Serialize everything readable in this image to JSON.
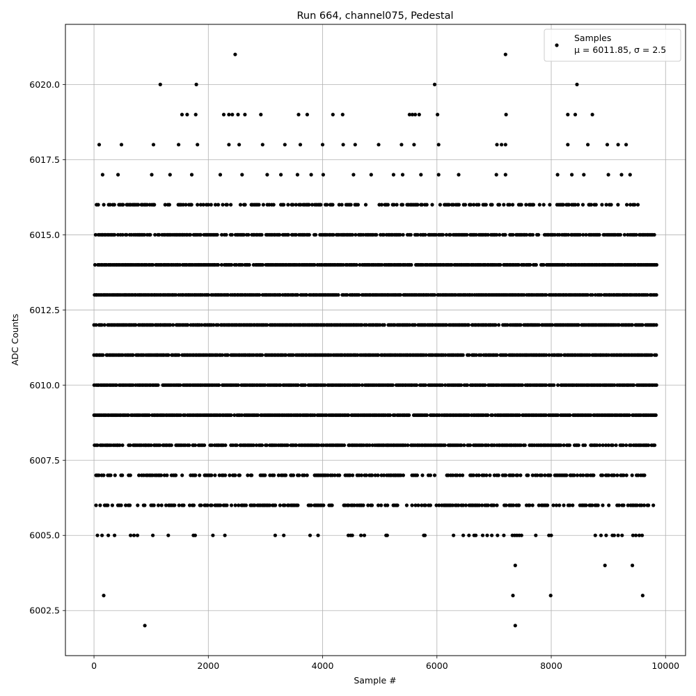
{
  "chart_data": {
    "type": "scatter",
    "title": "Run 664, channel075, Pedestal",
    "xlabel": "Sample #",
    "ylabel": "ADC Counts",
    "xlim": [
      -500,
      10350
    ],
    "ylim": [
      6001.0,
      6022.0
    ],
    "xticks": [
      0,
      2000,
      4000,
      6000,
      8000,
      10000
    ],
    "xtick_labels": [
      "0",
      "2000",
      "4000",
      "6000",
      "8000",
      "10000"
    ],
    "yticks": [
      6002.5,
      6005.0,
      6007.5,
      6010.0,
      6012.5,
      6015.0,
      6017.5,
      6020.0
    ],
    "ytick_labels": [
      "6002.5",
      "6005.0",
      "6007.5",
      "6010.0",
      "6012.5",
      "6015.0",
      "6017.5",
      "6020.0"
    ],
    "grid": true,
    "legend": {
      "placement": "top-right",
      "entries": [
        "Samples",
        "μ = 6011.85, σ = 2.5"
      ]
    },
    "series": [
      {
        "name": "Samples",
        "color": "#000000",
        "n_samples": 9830,
        "x_range": [
          0,
          9830
        ],
        "mean": 6011.85,
        "sigma": 2.5,
        "levels": [
          {
            "y": 6021,
            "x": [
              2470,
              7200
            ]
          },
          {
            "y": 6020,
            "x": [
              1160,
              1790,
              5960,
              8450
            ]
          },
          {
            "y": 6019,
            "x": [
              1540,
              1630,
              1780,
              2270,
              2360,
              2420,
              2520,
              2640,
              2920,
              3580,
              3730,
              4180,
              4350,
              5520,
              5570,
              5620,
              5690,
              6010,
              7210,
              8290,
              8420,
              8720
            ]
          },
          {
            "y": 6018,
            "x": [
              90,
              480,
              1040,
              1480,
              1810,
              2360,
              2540,
              2950,
              3340,
              3610,
              4000,
              4360,
              4570,
              4980,
              5380,
              5600,
              6030,
              7050,
              7130,
              7200,
              8290,
              8640,
              8980,
              9170,
              9310
            ]
          },
          {
            "y": 6017,
            "x": [
              150,
              420,
              1010,
              1330,
              1710,
              2210,
              2590,
              3030,
              3270,
              3560,
              3800,
              4010,
              4540,
              4850,
              5240,
              5400,
              5720,
              6030,
              6380,
              7040,
              7200,
              8110,
              8360,
              8570,
              9000,
              9230,
              9380
            ]
          }
        ],
        "bands": [
          {
            "y": 6016,
            "x_start": 40,
            "x_end": 9510,
            "density": "medium"
          },
          {
            "y": 6015,
            "x_start": 20,
            "x_end": 9830,
            "density": "high"
          },
          {
            "y": 6014,
            "x_start": 10,
            "x_end": 9840,
            "density": "very high"
          },
          {
            "y": 6013,
            "x_start": 0,
            "x_end": 9840,
            "density": "very high"
          },
          {
            "y": 6012,
            "x_start": 0,
            "x_end": 9840,
            "density": "very high"
          },
          {
            "y": 6011,
            "x_start": 0,
            "x_end": 9830,
            "density": "very high"
          },
          {
            "y": 6010,
            "x_start": 0,
            "x_end": 9840,
            "density": "very high"
          },
          {
            "y": 6009,
            "x_start": 0,
            "x_end": 9840,
            "density": "very high"
          },
          {
            "y": 6008,
            "x_start": 0,
            "x_end": 9830,
            "density": "high"
          },
          {
            "y": 6007,
            "x_start": 0,
            "x_end": 9770,
            "density": "medium"
          },
          {
            "y": 6006,
            "x_start": 0,
            "x_end": 9830,
            "density": "medium"
          }
        ],
        "sparse_levels": [
          {
            "y": 6005,
            "x": [
              60,
              140,
              250,
              360,
              640,
              700,
              760,
              1030,
              1300,
              1740,
              1770,
              2080,
              2290,
              3170,
              3320,
              3780,
              3920,
              4450,
              4490,
              4520,
              4670,
              4730,
              5110,
              5130,
              5770,
              5790,
              6290,
              6460,
              6560,
              6650,
              6680,
              6800,
              6880,
              6960,
              7060,
              7170,
              7320,
              7360,
              7400,
              7440,
              7480,
              7730,
              7960,
              8000,
              8770,
              8870,
              8960,
              9070,
              9100,
              9170,
              9240,
              9430,
              9480,
              9540,
              9590
            ]
          },
          {
            "y": 6004,
            "x": [
              7370,
              8940,
              9420
            ]
          },
          {
            "y": 6003,
            "x": [
              170,
              7330,
              7990,
              9600
            ]
          },
          {
            "y": 6002,
            "x": [
              890,
              7370
            ]
          }
        ]
      }
    ]
  }
}
